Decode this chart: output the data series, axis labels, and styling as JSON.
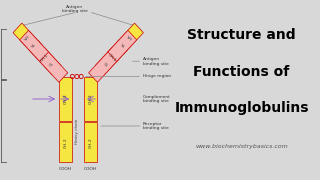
{
  "bg_color": "#d8d8d8",
  "left_panel_bg": "#ffffff",
  "right_panel_bg": "#aac4e0",
  "title_lines": [
    "Structure and",
    "Functions of",
    "Immunoglobulins"
  ],
  "title_color": "#000000",
  "website": "www.biochemistrybasics.com",
  "website_color": "#555555",
  "yellow": "#f5e642",
  "pink": "#f5b8b8",
  "red_border": "#cc0000",
  "label_color": "#333333",
  "arrow_color": "#555555"
}
